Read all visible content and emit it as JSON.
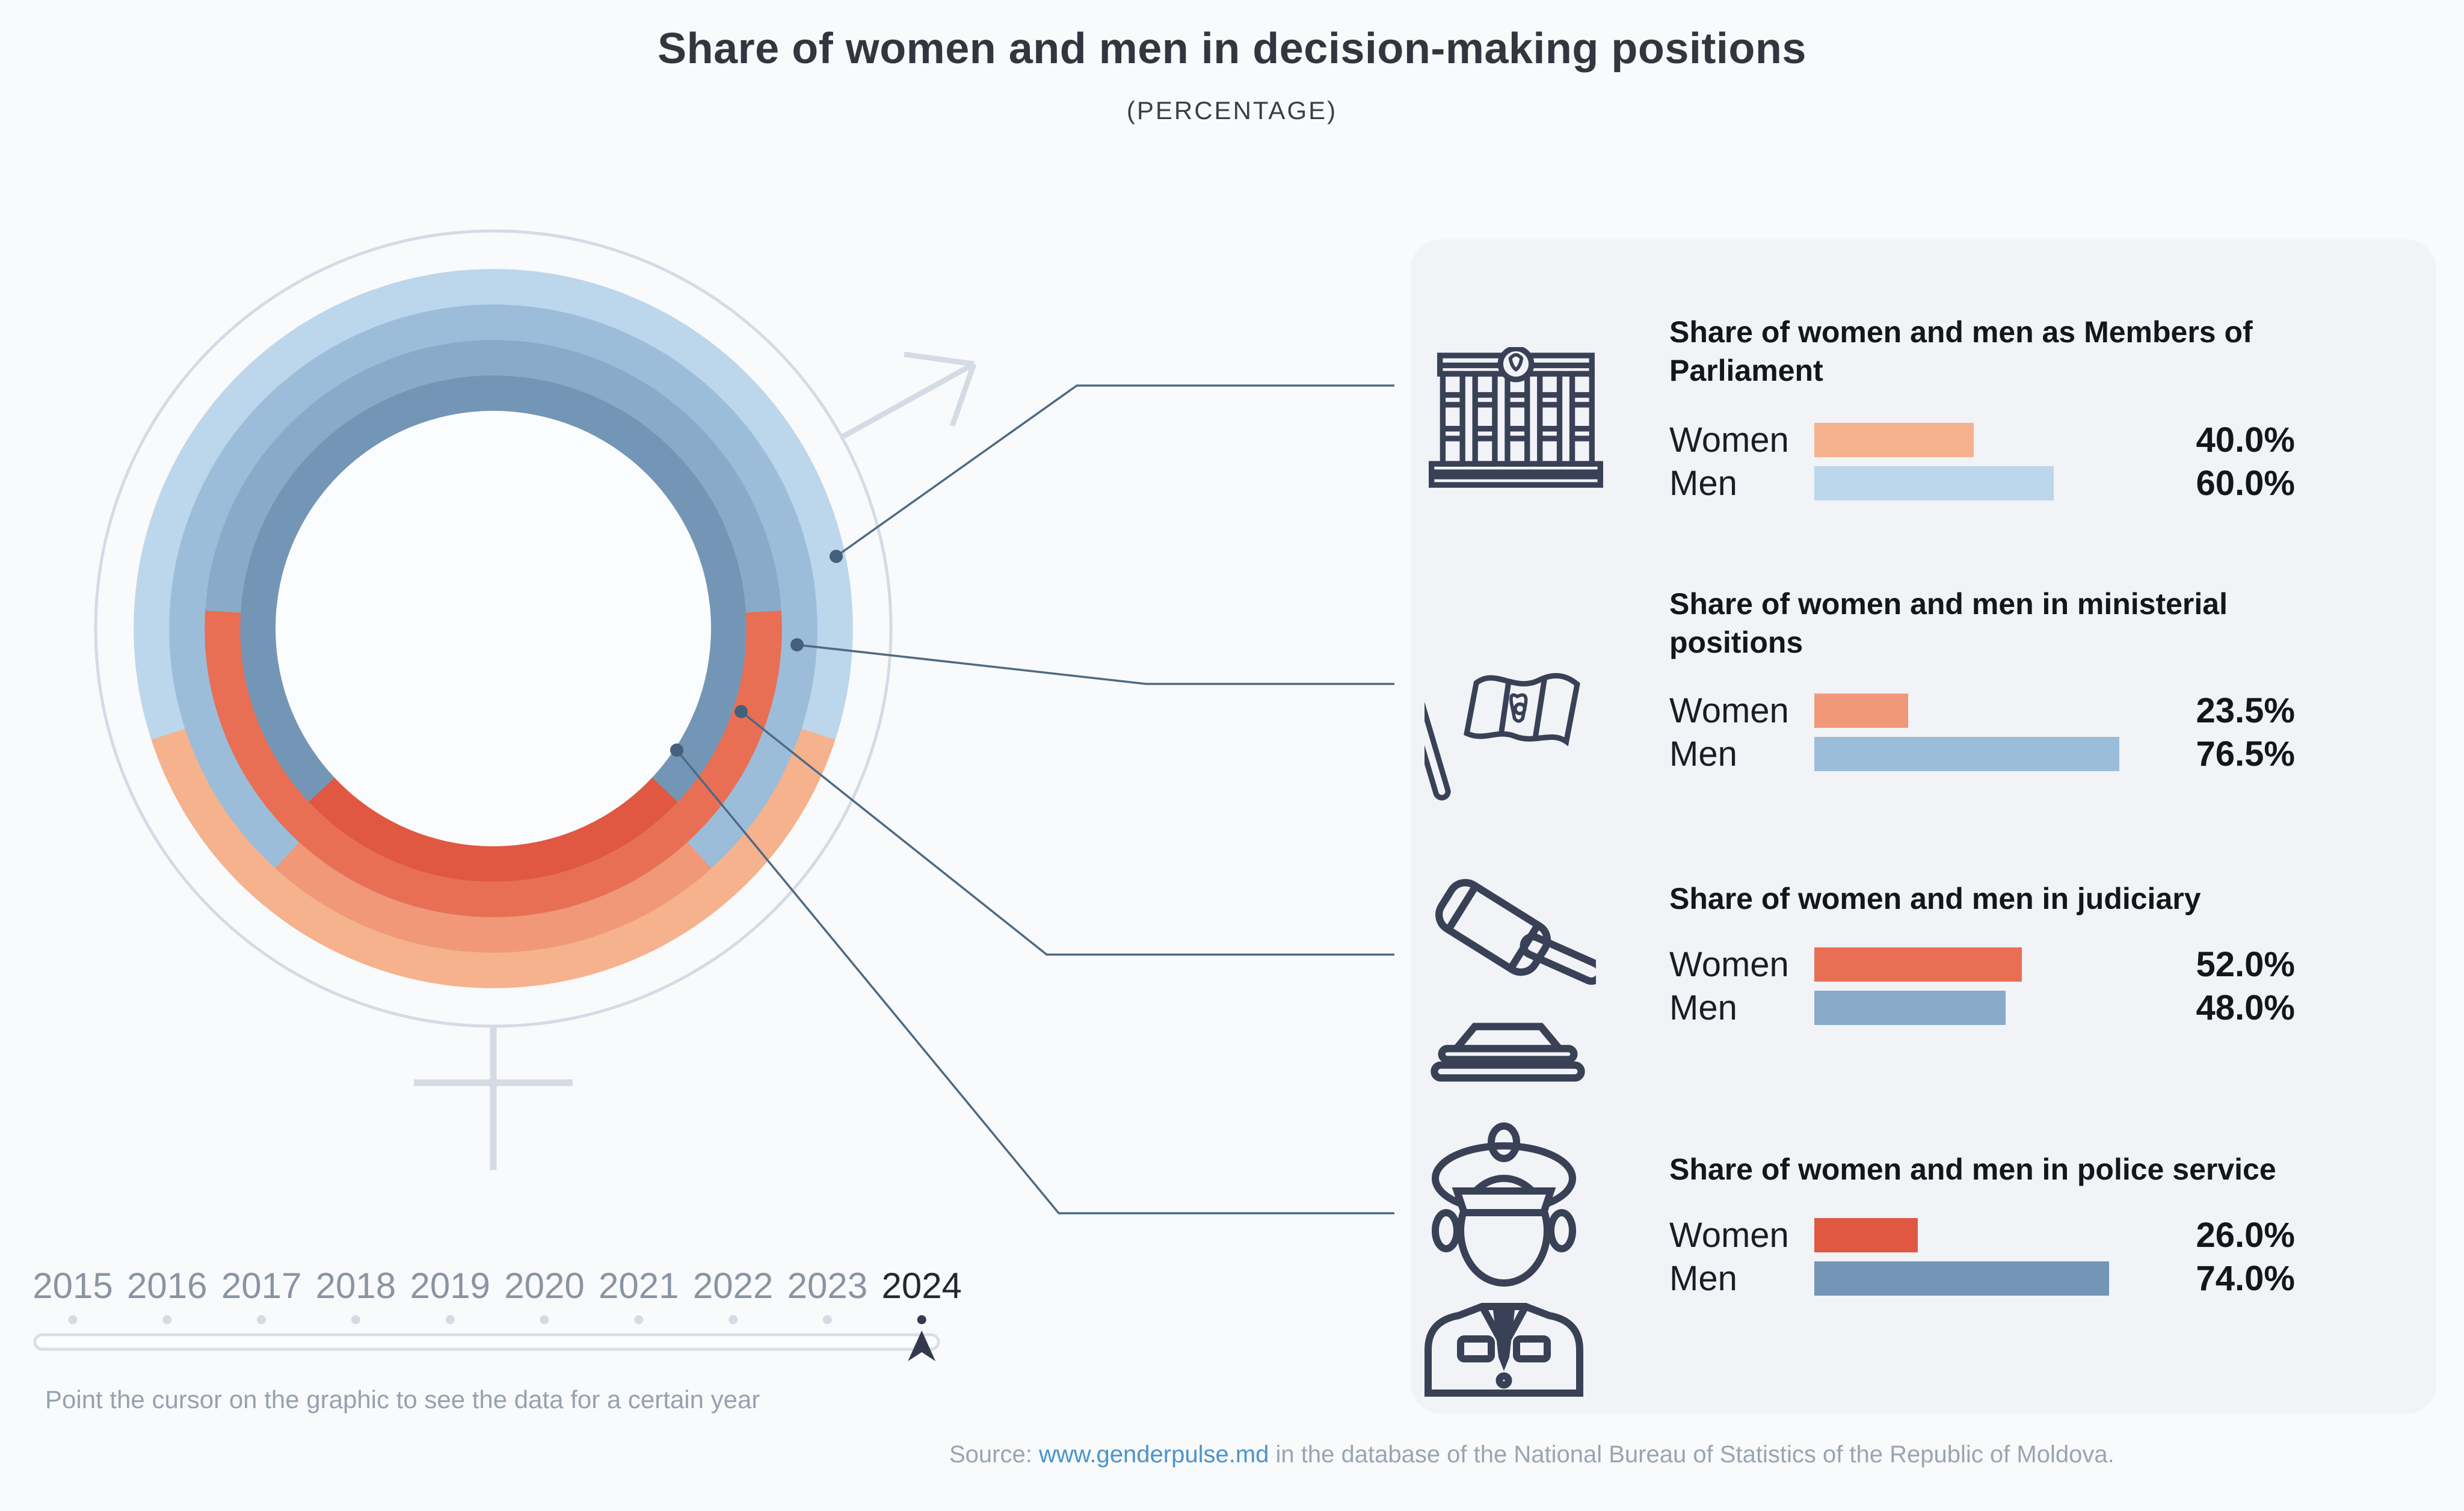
{
  "title": "Share of women and men in decision-making positions",
  "subtitle": "(PERCENTAGE)",
  "colors": {
    "page_bg": "#F9FAFB",
    "panel_bg": "#F1F3F7",
    "donut_hole": "#FBFCFD",
    "outline_symbol": "#D5DBE5",
    "connector_line": "#4E6A84",
    "connector_dot": "#44607A",
    "icon_stroke": "#394156",
    "track_border": "#D9DEE7",
    "track_fill": "#FDFDFE",
    "inactive_dot": "#D5DAE3",
    "active_marker": "#333A4E",
    "link_blue": "#4B94CB"
  },
  "chart_data": {
    "type": "donut-rings",
    "title": "Share of women and men in decision-making positions",
    "subtitle": "(PERCENTAGE)",
    "active_year": "2024",
    "rings_outer_to_inner": [
      "parliament",
      "ministerial",
      "judiciary",
      "police"
    ],
    "women_arc_centered_at_bottom": true,
    "categories": [
      {
        "id": "parliament",
        "heading": "Share of women and men as Members of Parliament",
        "icon": "parliament-building-icon",
        "women": 40.0,
        "men": 60.0,
        "women_label": "40.0%",
        "men_label": "60.0%",
        "women_color": "#F6B28C",
        "men_color": "#BCD6EC"
      },
      {
        "id": "ministerial",
        "heading": "Share of women and men in ministerial positions",
        "icon": "moldova-flag-icon",
        "women": 23.5,
        "men": 76.5,
        "women_label": "23.5%",
        "men_label": "76.5%",
        "women_color": "#F09878",
        "men_color": "#9CBDDA"
      },
      {
        "id": "judiciary",
        "heading": "Share of women and men in judiciary",
        "icon": "gavel-icon",
        "women": 52.0,
        "men": 48.0,
        "women_label": "52.0%",
        "men_label": "48.0%",
        "women_color": "#E96F54",
        "men_color": "#88ABC9"
      },
      {
        "id": "police",
        "heading": "Share of women and men in police service",
        "icon": "police-officer-icon",
        "women": 26.0,
        "men": 74.0,
        "women_label": "26.0%",
        "men_label": "74.0%",
        "women_color": "#E05842",
        "men_color": "#7396B6"
      }
    ]
  },
  "row_labels": {
    "women": "Women",
    "men": "Men"
  },
  "timeline": {
    "years": [
      "2015",
      "2016",
      "2017",
      "2018",
      "2019",
      "2020",
      "2021",
      "2022",
      "2023",
      "2024"
    ],
    "active_year": "2024",
    "hint": "Point the cursor on the graphic to see the data for a certain year"
  },
  "source": {
    "prefix": "Source: ",
    "link": "www.genderpulse.md",
    "suffix": " in the database of the National Bureau of Statistics of the Republic of Moldova."
  }
}
